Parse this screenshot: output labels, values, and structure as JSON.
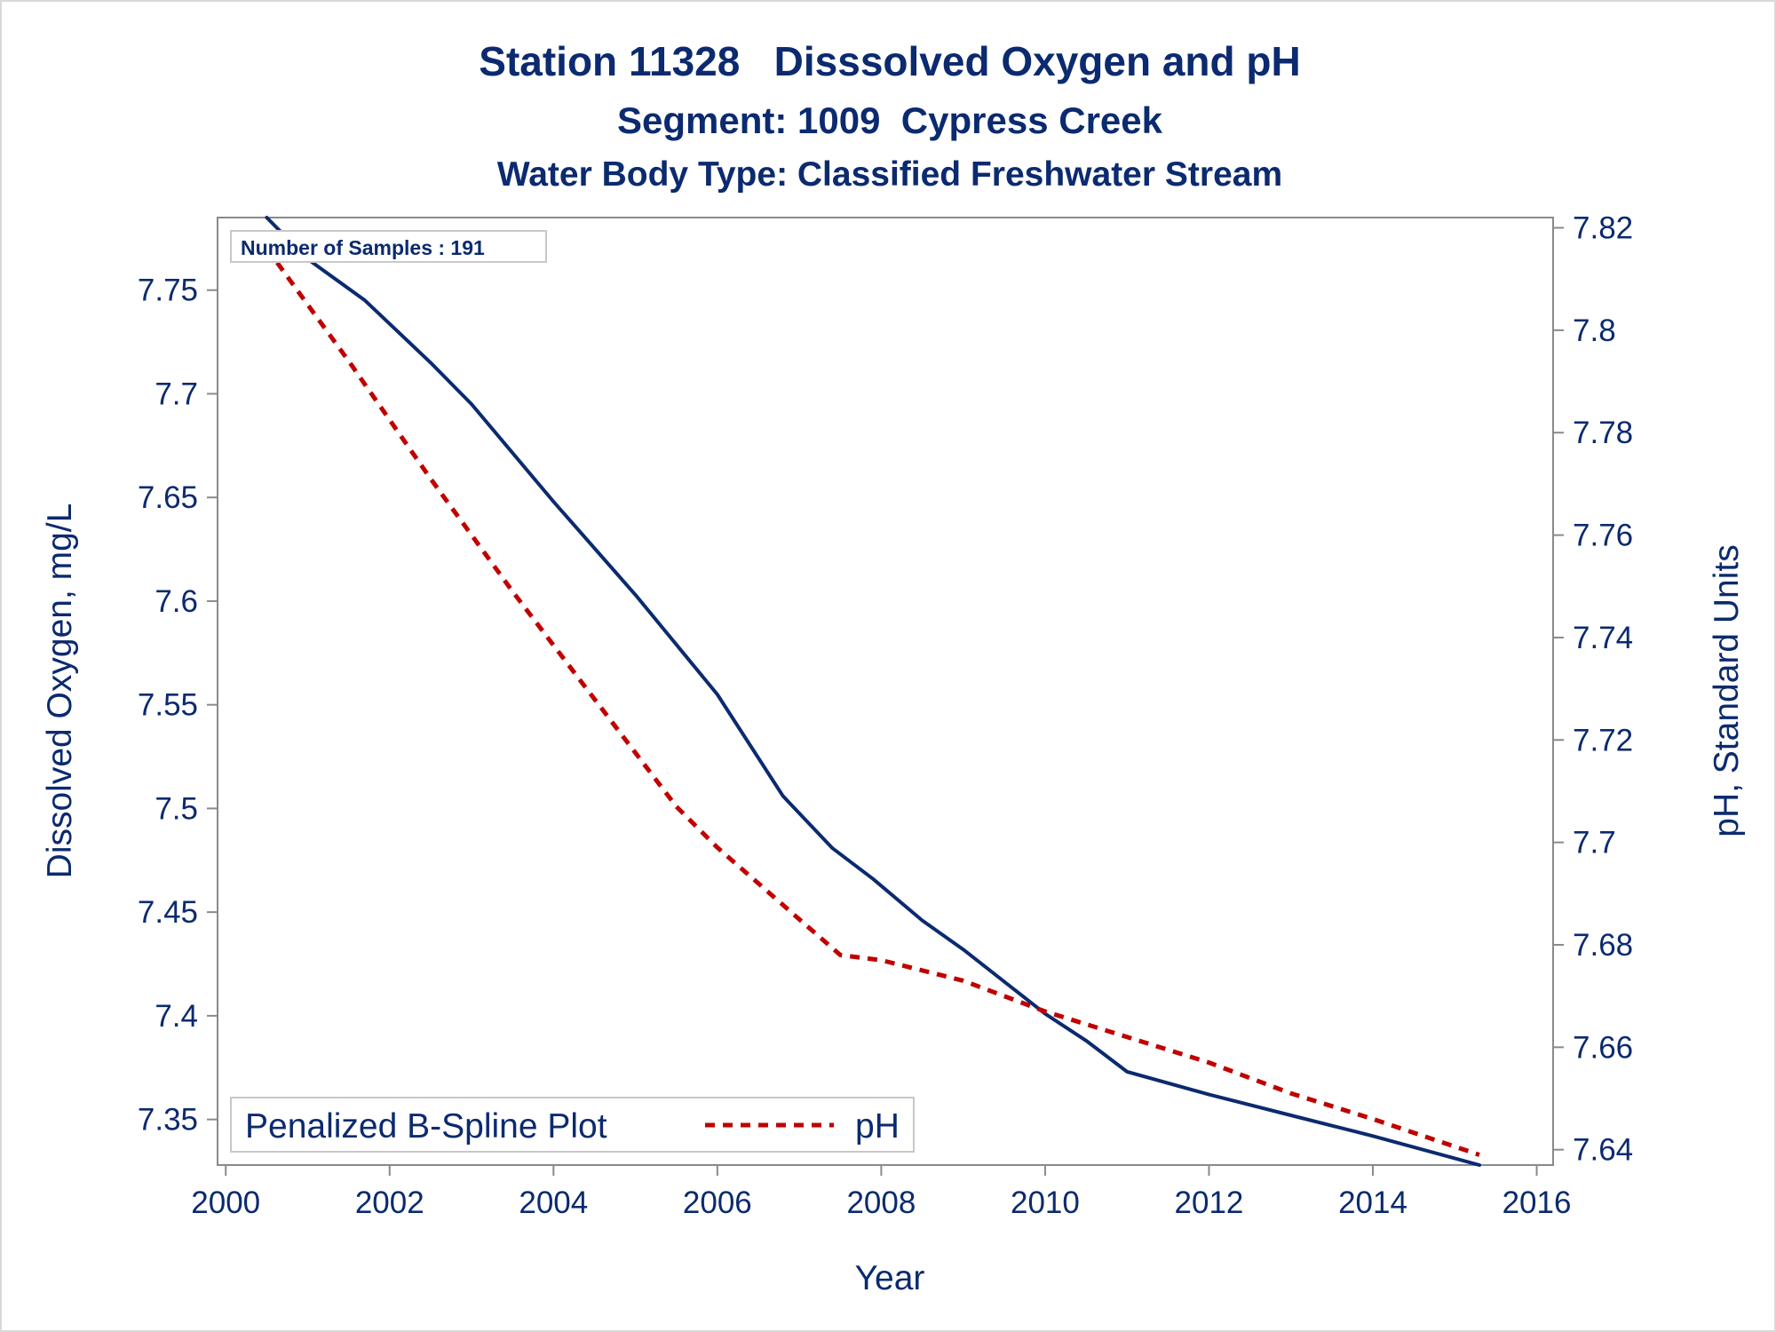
{
  "chart_data": {
    "type": "line",
    "title": "Station 11328   Disssolved Oxygen and pH",
    "subtitle": "Segment: 1009  Cypress Creek",
    "subtitle2": "Water Body Type: Classified Freshwater Stream",
    "xlabel": "Year",
    "ylabel_left": "Dissolved Oxygen, mg/L",
    "ylabel_right": "pH, Standard Units",
    "xlim": [
      1999.9,
      2016.2
    ],
    "ylim_left": [
      7.328,
      7.785
    ],
    "ylim_right": [
      7.637,
      7.822
    ],
    "x_ticks": [
      2000,
      2002,
      2004,
      2006,
      2008,
      2010,
      2012,
      2014,
      2016
    ],
    "x_tick_labels": [
      "2000",
      "2002",
      "2004",
      "2006",
      "2008",
      "2010",
      "2012",
      "2014",
      "2016"
    ],
    "y_left_ticks": [
      7.35,
      7.4,
      7.45,
      7.5,
      7.55,
      7.6,
      7.65,
      7.7,
      7.75
    ],
    "y_left_tick_labels": [
      "7.35",
      "7.4",
      "7.45",
      "7.5",
      "7.55",
      "7.6",
      "7.65",
      "7.7",
      "7.75"
    ],
    "y_right_ticks": [
      7.64,
      7.66,
      7.68,
      7.7,
      7.72,
      7.74,
      7.76,
      7.78,
      7.8,
      7.82
    ],
    "y_right_tick_labels": [
      "7.64",
      "7.66",
      "7.68",
      "7.7",
      "7.72",
      "7.74",
      "7.76",
      "7.78",
      "7.8",
      "7.82"
    ],
    "grid": false,
    "inset_label": "Number of Samples : 191",
    "legend": {
      "position": "bottom-left",
      "title": "Penalized B-Spline Plot",
      "entries": [
        "pH"
      ]
    },
    "series": [
      {
        "axis": "left",
        "color": "#0b2a6f",
        "style": "solid",
        "x": [
          2000.5,
          2001.0,
          2001.7,
          2002.5,
          2003.0,
          2004.0,
          2005.0,
          2006.0,
          2006.8,
          2007.4,
          2007.9,
          2008.5,
          2009.0,
          2010.0,
          2010.5,
          2011.0,
          2012.0,
          2013.0,
          2014.0,
          2015.3
        ],
        "y": [
          7.785,
          7.765,
          7.745,
          7.715,
          7.695,
          7.648,
          7.603,
          7.555,
          7.506,
          7.481,
          7.466,
          7.446,
          7.432,
          7.401,
          7.388,
          7.373,
          7.362,
          7.352,
          7.342,
          7.328
        ]
      },
      {
        "axis": "right",
        "name": "pH",
        "color": "#c00000",
        "style": "dashed",
        "x": [
          2000.5,
          2001.5,
          2002.5,
          2003.5,
          2004.5,
          2005.5,
          2006.0,
          2006.5,
          2007.0,
          2007.5,
          2008.0,
          2008.5,
          2009.0,
          2010.0,
          2011.0,
          2012.0,
          2013.0,
          2014.0,
          2015.3
        ],
        "y": [
          7.816,
          7.794,
          7.771,
          7.749,
          7.728,
          7.707,
          7.699,
          7.692,
          7.685,
          7.678,
          7.677,
          7.675,
          7.673,
          7.667,
          7.662,
          7.657,
          7.651,
          7.646,
          7.639
        ]
      }
    ]
  }
}
